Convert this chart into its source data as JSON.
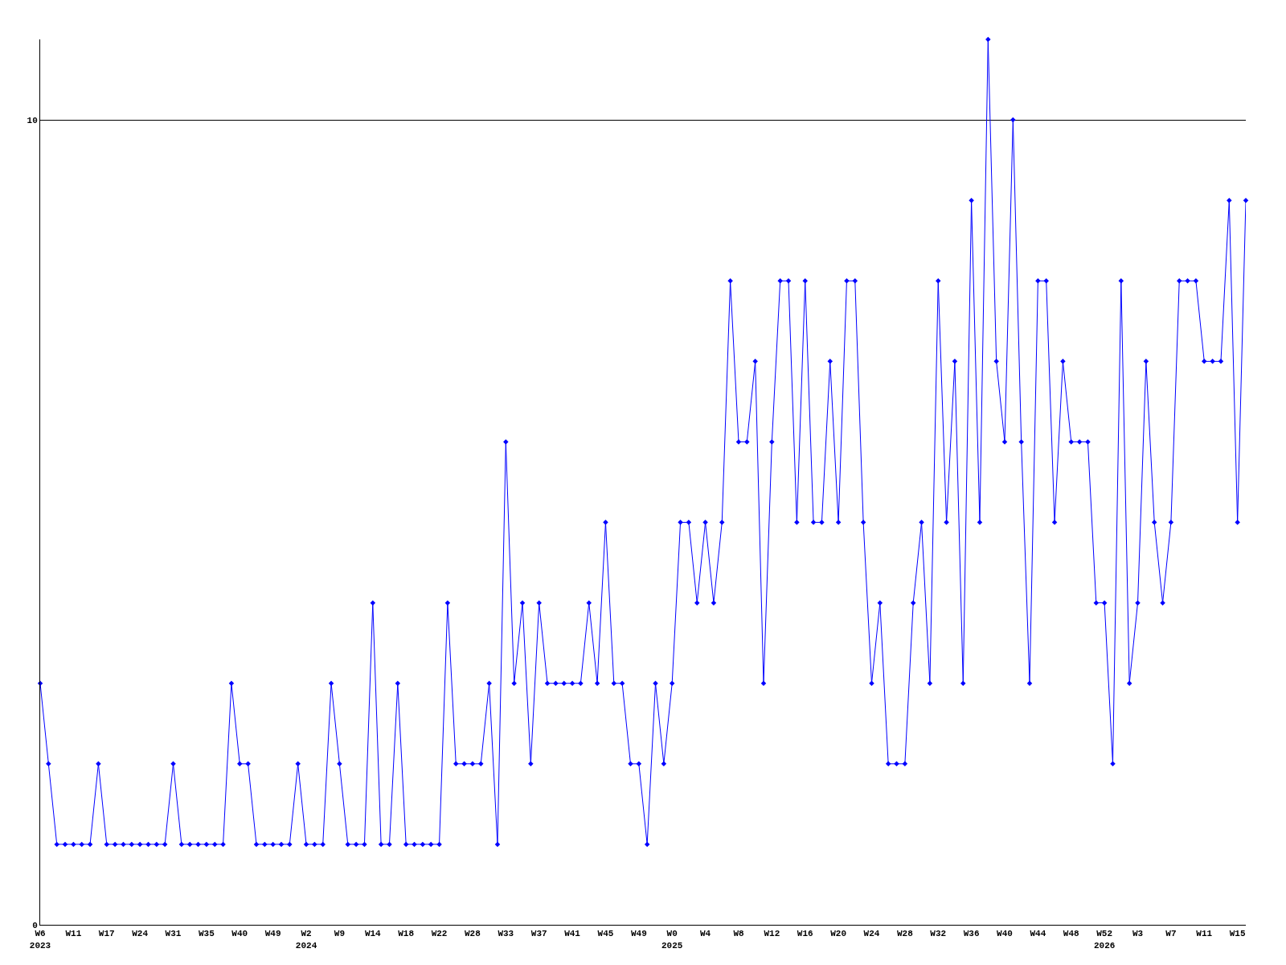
{
  "chart_data": {
    "type": "line",
    "categories": [
      "W6\n2023",
      null,
      null,
      null,
      "W11",
      null,
      null,
      null,
      "W17",
      null,
      null,
      null,
      "W24",
      null,
      null,
      null,
      "W31",
      null,
      null,
      null,
      "W35",
      null,
      null,
      null,
      "W40",
      null,
      null,
      null,
      "W49",
      null,
      null,
      null,
      "W2\n2024",
      null,
      null,
      null,
      "W9",
      null,
      null,
      null,
      "W14",
      null,
      null,
      null,
      "W18",
      null,
      null,
      null,
      "W22",
      null,
      null,
      null,
      "W28",
      null,
      null,
      null,
      "W33",
      null,
      null,
      null,
      "W37",
      null,
      null,
      null,
      "W41",
      null,
      null,
      null,
      "W45",
      null,
      null,
      null,
      "W49",
      null,
      null,
      null,
      "W0\n2025",
      null,
      null,
      null,
      "W4",
      null,
      null,
      null,
      "W8",
      null,
      null,
      null,
      "W12",
      null,
      null,
      null,
      "W16",
      null,
      null,
      null,
      "W20",
      null,
      null,
      null,
      "W24",
      null,
      null,
      null,
      "W28",
      null,
      null,
      null,
      "W32",
      null,
      null,
      null,
      "W36",
      null,
      null,
      null,
      "W40",
      null,
      null,
      null,
      "W44",
      null,
      null,
      null,
      "W48",
      null,
      null,
      null,
      "W52\n2026",
      null,
      null,
      null,
      "W3",
      null,
      null,
      null,
      "W7",
      null,
      null,
      null,
      "W11",
      null,
      null,
      null,
      "W15",
      null
    ],
    "series": [
      {
        "color": "#0000ff",
        "values": [
          3,
          2,
          1,
          1,
          1,
          1,
          1,
          2,
          1,
          1,
          1,
          1,
          1,
          1,
          1,
          1,
          2,
          1,
          1,
          1,
          1,
          1,
          1,
          3,
          2,
          2,
          1,
          1,
          1,
          1,
          1,
          2,
          1,
          1,
          1,
          3,
          2,
          1,
          1,
          1,
          4,
          1,
          1,
          3,
          1,
          1,
          1,
          1,
          1,
          4,
          2,
          2,
          2,
          2,
          3,
          1,
          6,
          3,
          4,
          2,
          4,
          3,
          3,
          3,
          3,
          3,
          4,
          3,
          5,
          3,
          3,
          2,
          2,
          1,
          3,
          2,
          3,
          5,
          5,
          4,
          5,
          4,
          5,
          8,
          6,
          6,
          7,
          3,
          6,
          8,
          8,
          5,
          8,
          5,
          5,
          7,
          5,
          8,
          8,
          5,
          3,
          4,
          2,
          2,
          2,
          4,
          5,
          3,
          8,
          5,
          7,
          3,
          9,
          5,
          11,
          7,
          6,
          10,
          6,
          3,
          8,
          8,
          5,
          7,
          6,
          6,
          6,
          4,
          4,
          2,
          8,
          3,
          4,
          7,
          5,
          4,
          5,
          8,
          8,
          8,
          7,
          7,
          7,
          9,
          5,
          9
        ]
      }
    ],
    "ylim": [
      0,
      11
    ],
    "yticks": [
      0,
      10
    ],
    "grid": "y",
    "marker": "diamond",
    "line_style": "solid"
  }
}
